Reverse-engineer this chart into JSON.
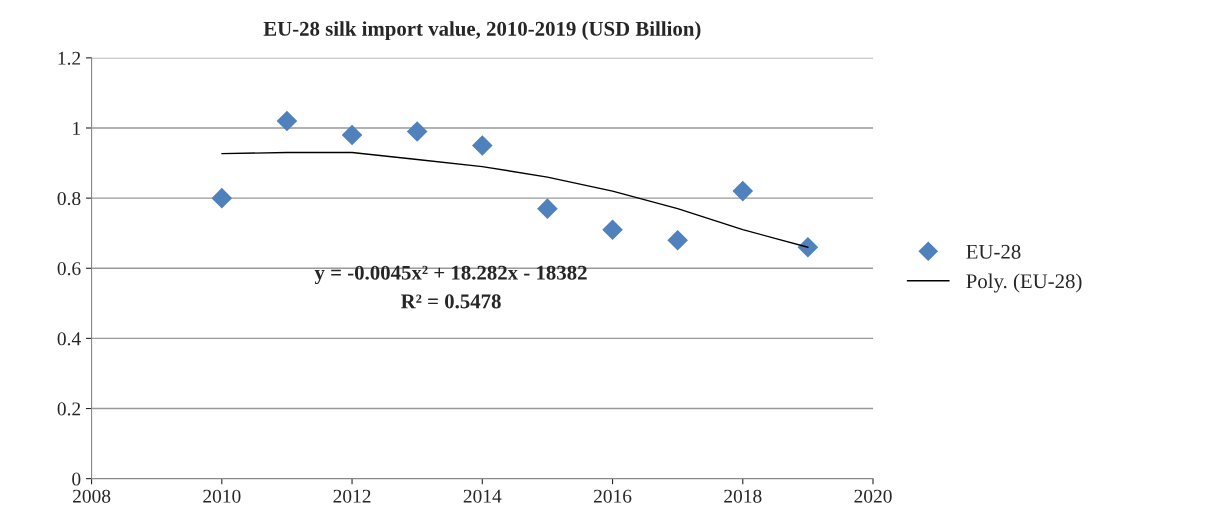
{
  "chart_data": {
    "type": "scatter",
    "title": "EU-28 silk import value, 2010-2019 (USD Billion)",
    "series": [
      {
        "name": "EU-28",
        "color": "#4f81bd",
        "marker": "diamond",
        "x": [
          2010,
          2011,
          2012,
          2013,
          2014,
          2015,
          2016,
          2017,
          2018,
          2019
        ],
        "values": [
          0.8,
          1.02,
          0.98,
          0.99,
          0.95,
          0.77,
          0.71,
          0.68,
          0.82,
          0.66
        ]
      },
      {
        "name": "Poly. (EU-28)",
        "type": "line",
        "color": "#000000",
        "marker": "none",
        "line_style": "solid",
        "x": [
          2010,
          2011,
          2012,
          2013,
          2014,
          2015,
          2016,
          2017,
          2018,
          2019
        ],
        "values": [
          0.927,
          0.93,
          0.93,
          0.91,
          0.89,
          0.86,
          0.82,
          0.77,
          0.71,
          0.66
        ]
      }
    ],
    "annotations": [
      "y = -0.0045x² + 18.282x - 18382",
      "R² = 0.5478"
    ],
    "xlim": [
      2008,
      2020
    ],
    "xticks": [
      2008,
      2010,
      2012,
      2014,
      2016,
      2018,
      2020
    ],
    "ylim": [
      0,
      1.2
    ],
    "yticks": [
      0,
      0.2,
      0.4,
      0.6,
      0.8,
      1,
      1.2
    ],
    "grid": "y",
    "legend": "right"
  }
}
